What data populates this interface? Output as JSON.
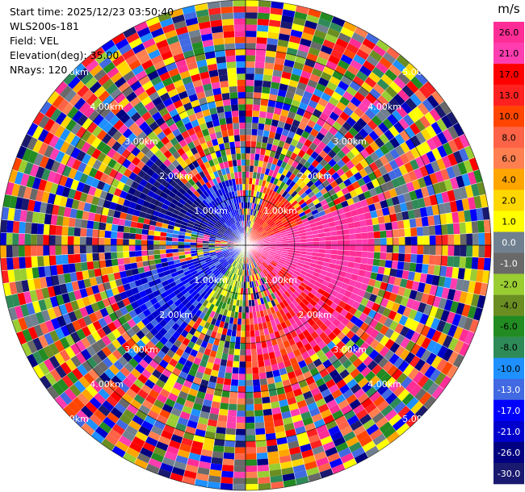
{
  "info": {
    "start_time": "Start time: 2025/12/23 03:50:40",
    "station": "WLS200s-181",
    "field": "Field: VEL",
    "elevation": "Elevation(deg): 35.00",
    "nrays": "NRays: 120"
  },
  "chart_data": {
    "type": "heatmap",
    "projection": "polar-ppi",
    "field": "VEL",
    "units": "m/s",
    "elevation_deg": 35.0,
    "n_rays": 120,
    "range_rings_km": [
      1.0,
      2.0,
      3.0,
      4.0,
      5.0
    ],
    "ring_labels": [
      "1.00km",
      "2.00km",
      "3.00km",
      "4.00km",
      "5.00km"
    ],
    "colorbar": {
      "label": "m/s",
      "ticks": [
        "26.0",
        "21.0",
        "17.0",
        "13.0",
        "10.0",
        "8.0",
        "6.0",
        "4.0",
        "2.0",
        "1.0",
        "0.0",
        "-1.0",
        "-2.0",
        "-4.0",
        "-6.0",
        "-8.0",
        "-10.0",
        "-13.0",
        "-17.0",
        "-21.0",
        "-26.0",
        "-30.0"
      ],
      "colors": [
        "#ff2d95",
        "#ff3db0",
        "#ff0000",
        "#ff2020",
        "#ff4500",
        "#ff6347",
        "#ff7f50",
        "#ffa500",
        "#ffd700",
        "#ffff00",
        "#708090",
        "#696969",
        "#9acd32",
        "#6b8e23",
        "#228b22",
        "#2e8b57",
        "#1e90ff",
        "#4169e1",
        "#0000ff",
        "#0000cd",
        "#000080",
        "#191970"
      ]
    },
    "notes_visible": "Coherent approaching (blue) sector to west/southwest, receding (red/pink) sector to east/southeast within ~2.5km; noisy random values beyond."
  }
}
